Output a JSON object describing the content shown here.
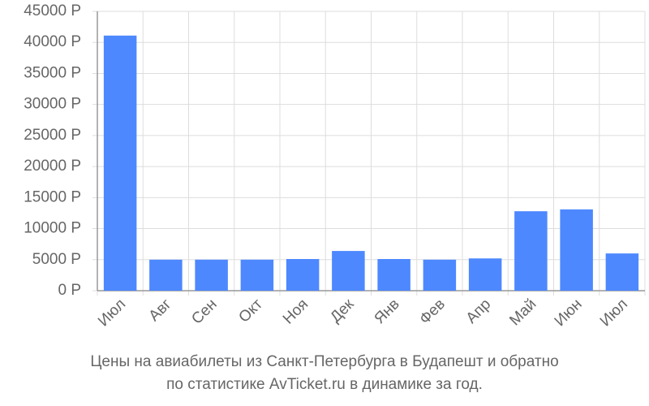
{
  "chart_data": {
    "type": "bar",
    "title": "Цены на авиабилеты из Санкт-Петербурга в Будапешт и обратно",
    "subtitle": "по статистике AvTicket.ru в динамике за год.",
    "categories": [
      "Июл",
      "Авг",
      "Сен",
      "Окт",
      "Ноя",
      "Дек",
      "Янв",
      "Фев",
      "Апр",
      "Май",
      "Июн",
      "Июл"
    ],
    "values": [
      41100,
      5000,
      5000,
      5000,
      5100,
      6400,
      5100,
      5000,
      5200,
      12800,
      13100,
      6000
    ],
    "color": "#4d88ff",
    "ylim": [
      0,
      45000
    ],
    "yticks": [
      {
        "value": 0,
        "label": "0 Р"
      },
      {
        "value": 5000,
        "label": "5000 Р"
      },
      {
        "value": 10000,
        "label": "10000 Р"
      },
      {
        "value": 15000,
        "label": "15000 Р"
      },
      {
        "value": 20000,
        "label": "20000 Р"
      },
      {
        "value": 25000,
        "label": "25000 Р"
      },
      {
        "value": 30000,
        "label": "30000 Р"
      },
      {
        "value": 35000,
        "label": "35000 Р"
      },
      {
        "value": 40000,
        "label": "40000 Р"
      },
      {
        "value": 45000,
        "label": "45000 Р"
      }
    ],
    "grid": true
  }
}
